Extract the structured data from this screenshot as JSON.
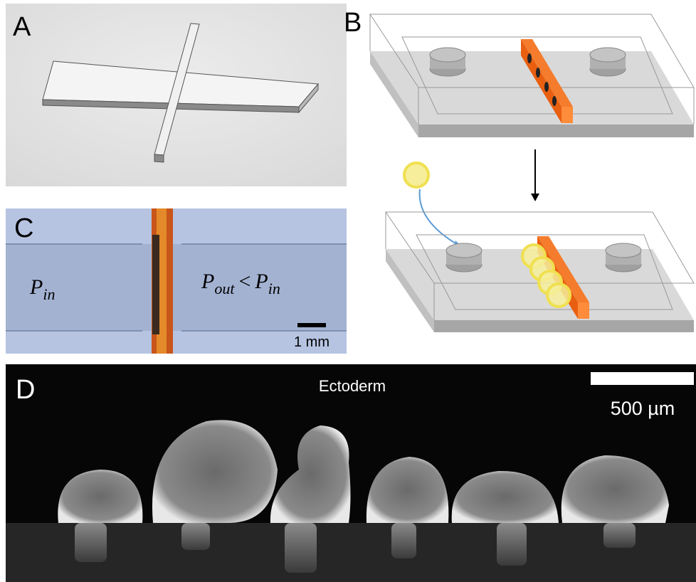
{
  "panel_a": {
    "label": "A"
  },
  "panel_b": {
    "label": "B"
  },
  "panel_c": {
    "label": "C",
    "left": {
      "base": "P",
      "sub": "in"
    },
    "right": {
      "base1": "P",
      "sub1": "out",
      "relation": "<",
      "base2": "P",
      "sub2": "in"
    },
    "scale_bar": "1 mm"
  },
  "panel_d": {
    "label": "D",
    "title": "Ectoderm",
    "scale_bar": "500 µm"
  }
}
